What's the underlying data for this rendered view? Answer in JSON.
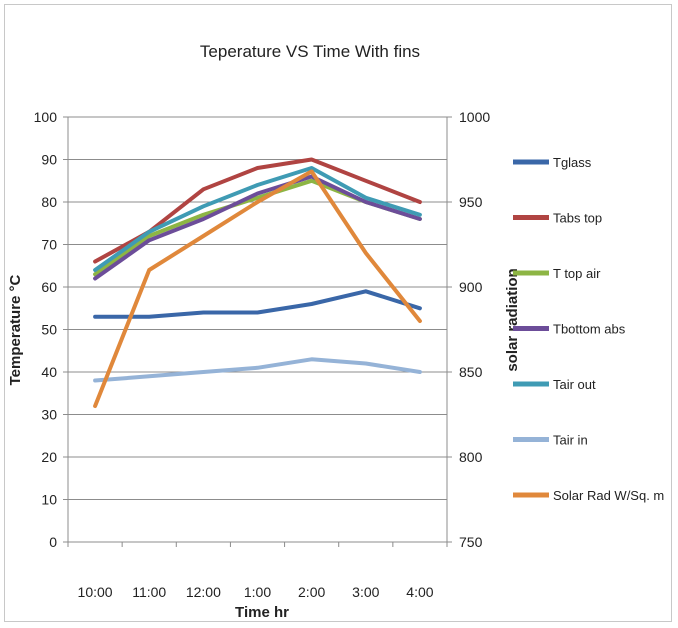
{
  "chart_data": {
    "type": "line",
    "title": "Teperature VS Time With fins",
    "xlabel": "Time hr",
    "ylabel": "Temperature °C",
    "y2label": "solar radiation",
    "categories": [
      "10:00",
      "11:00",
      "12:00",
      "1:00",
      "2:00",
      "3:00",
      "4:00"
    ],
    "ylim": [
      0,
      100
    ],
    "y2lim": [
      750,
      1000
    ],
    "yticks": [
      "0",
      "10",
      "20",
      "30",
      "40",
      "50",
      "60",
      "70",
      "80",
      "90",
      "100"
    ],
    "y2ticks": [
      "750",
      "800",
      "850",
      "900",
      "950",
      "1000"
    ],
    "grid": true,
    "legend_position": "right",
    "series": [
      {
        "name": "Tglass",
        "axis": "left",
        "color": "#3a67a8",
        "values": [
          53,
          53,
          54,
          54,
          56,
          59,
          55
        ]
      },
      {
        "name": "Tabs top",
        "axis": "left",
        "color": "#b04442",
        "values": [
          66,
          73,
          83,
          88,
          90,
          85,
          80
        ]
      },
      {
        "name": "T top air",
        "axis": "left",
        "color": "#8db544",
        "values": [
          63,
          72,
          77,
          81,
          85,
          80,
          76
        ]
      },
      {
        "name": "Tbottom abs",
        "axis": "left",
        "color": "#6c4d99",
        "values": [
          62,
          71,
          76,
          82,
          86,
          80,
          76
        ]
      },
      {
        "name": "Tair out",
        "axis": "left",
        "color": "#3f9bb4",
        "values": [
          64,
          73,
          79,
          84,
          88,
          81,
          77
        ]
      },
      {
        "name": "Tair in",
        "axis": "left",
        "color": "#95b3d7",
        "values": [
          38,
          39,
          40,
          41,
          43,
          42,
          40
        ]
      },
      {
        "name": "Solar Rad W/Sq. m",
        "axis": "right",
        "color": "#e0883b",
        "values": [
          830,
          910,
          930,
          950,
          968,
          920,
          880
        ]
      }
    ]
  }
}
